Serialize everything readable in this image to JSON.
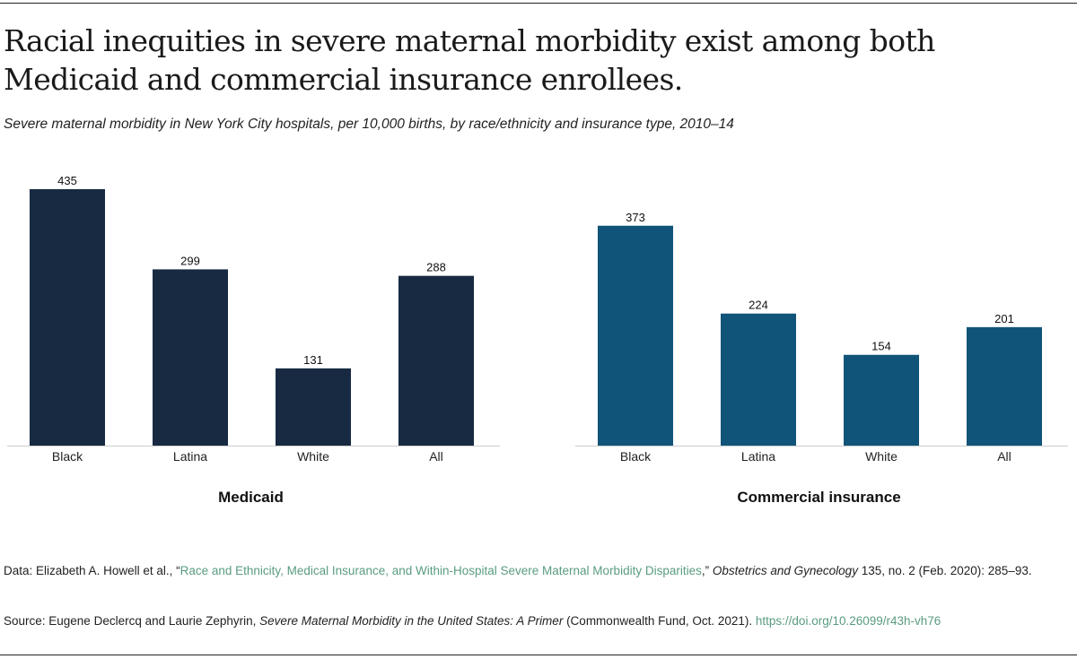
{
  "title": "Racial inequities in severe maternal morbidity exist among both Medicaid and commercial insurance enrollees.",
  "subtitle": "Severe maternal morbidity in New York City hospitals, per 10,000 births, by race/ethnicity and insurance type, 2010–14",
  "chart_data": [
    {
      "type": "bar",
      "title": "Medicaid",
      "categories": [
        "Black",
        "Latina",
        "White",
        "All"
      ],
      "values": [
        435,
        299,
        131,
        288
      ],
      "color": "#172a42",
      "ylim": [
        0,
        435
      ],
      "grid": false
    },
    {
      "type": "bar",
      "title": "Commercial insurance",
      "categories": [
        "Black",
        "Latina",
        "White",
        "All"
      ],
      "values": [
        373,
        224,
        154,
        201
      ],
      "color": "#115479",
      "ylim": [
        0,
        435
      ],
      "grid": false
    }
  ],
  "notes": {
    "data_prefix": "Data: Elizabeth A. Howell et al., “",
    "data_link": "Race and Ethnicity, Medical Insurance, and Within-Hospital Severe Maternal Morbidity Disparities",
    "data_mid": ",” ",
    "data_journal": "Obstetrics and Gynecology",
    "data_suffix": " 135, no. 2 (Feb. 2020): 285–93.",
    "source_prefix": "Source: Eugene Declercq and Laurie Zephyrin, ",
    "source_title": "Severe Maternal Morbidity in the United States: A Primer",
    "source_suffix": " (Commonwealth Fund, Oct. 2021). ",
    "source_link": "https://doi.org/10.26099/r43h-vh76"
  }
}
